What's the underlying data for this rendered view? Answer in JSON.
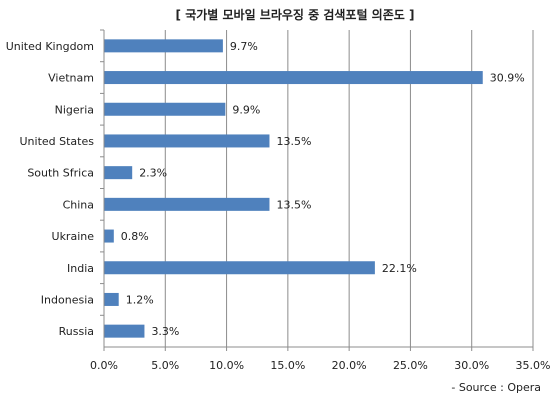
{
  "chart_data": {
    "type": "bar",
    "orientation": "horizontal",
    "title": "[ 국가별 모바일 브라우징 중 검색포털 의존도 ]",
    "source": "- Source : Opera",
    "categories": [
      "United Kingdom",
      "Vietnam",
      "Nigeria",
      "United States",
      "South Sfrica",
      "China",
      "Ukraine",
      "India",
      "Indonesia",
      "Russia"
    ],
    "values": [
      9.7,
      30.9,
      9.9,
      13.5,
      2.3,
      13.5,
      0.8,
      22.1,
      1.2,
      3.3
    ],
    "value_labels": [
      "9.7%",
      "30.9%",
      "9.9%",
      "13.5%",
      "2.3%",
      "13.5%",
      "0.8%",
      "22.1%",
      "1.2%",
      "3.3%"
    ],
    "xlim": [
      0,
      35
    ],
    "xticks": [
      0,
      5,
      10,
      15,
      20,
      25,
      30,
      35
    ],
    "xtick_labels": [
      "0.0%",
      "5.0%",
      "10.0%",
      "15.0%",
      "20.0%",
      "25.0%",
      "30.0%",
      "35.0%"
    ],
    "xlabel": "",
    "ylabel": "",
    "grid": "vertical",
    "legend": "none",
    "bar_color": "#4F81BD"
  }
}
